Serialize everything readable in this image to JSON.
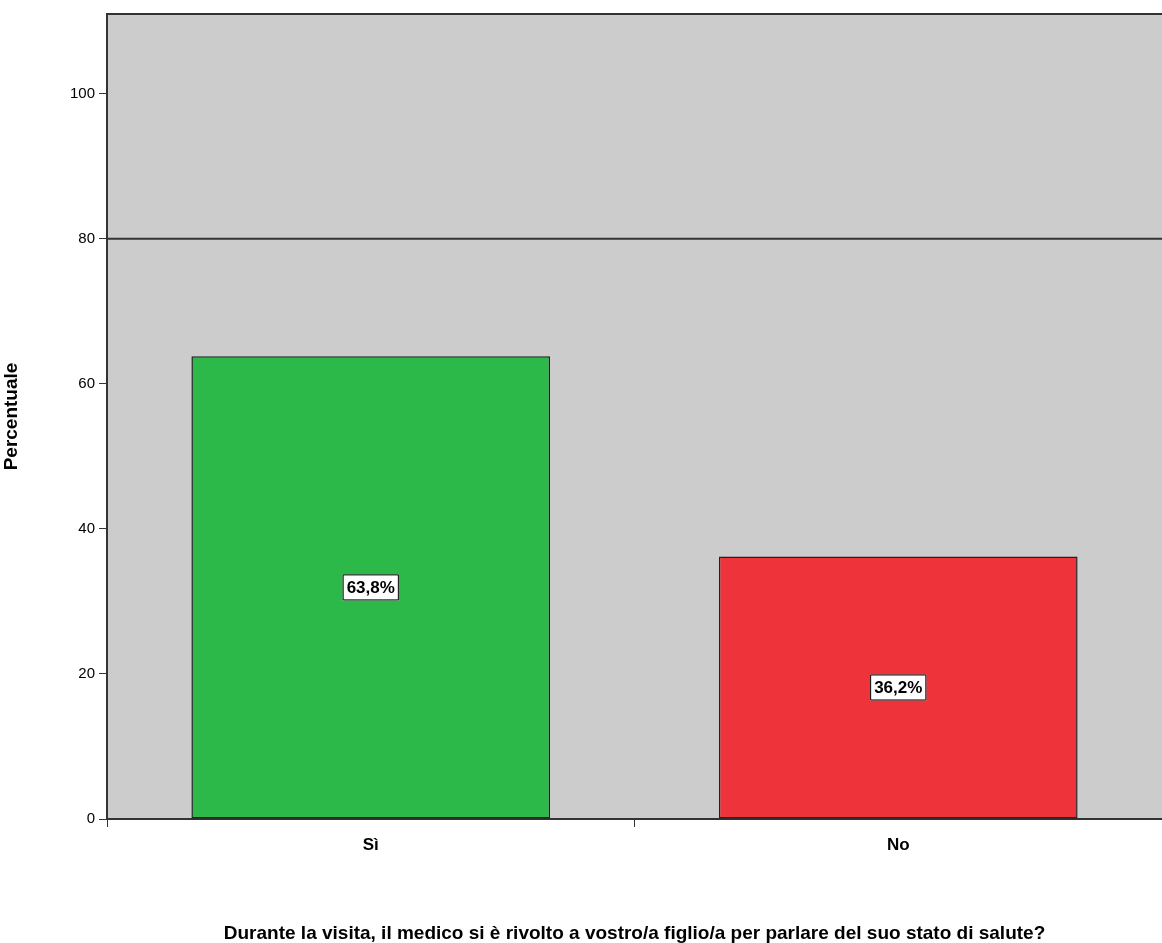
{
  "chart_data": {
    "type": "bar",
    "xlabel": "Durante la visita, il medico si è rivolto a vostro/a figlio/a per parlare del suo stato di salute?",
    "ylabel": "Percentuale",
    "categories": [
      "Sì",
      "No"
    ],
    "values": [
      63.8,
      36.2
    ],
    "colors": [
      "#2db84a",
      "#ef333b"
    ],
    "value_labels": [
      "63,8%",
      "36,2%"
    ],
    "ylim": [
      0,
      111
    ],
    "yticks": [
      0,
      20,
      40,
      60,
      80,
      100
    ],
    "ref_lines": [
      {
        "axis": "y",
        "value": 80,
        "color": "#333333"
      }
    ],
    "grid": false,
    "legend": false
  }
}
